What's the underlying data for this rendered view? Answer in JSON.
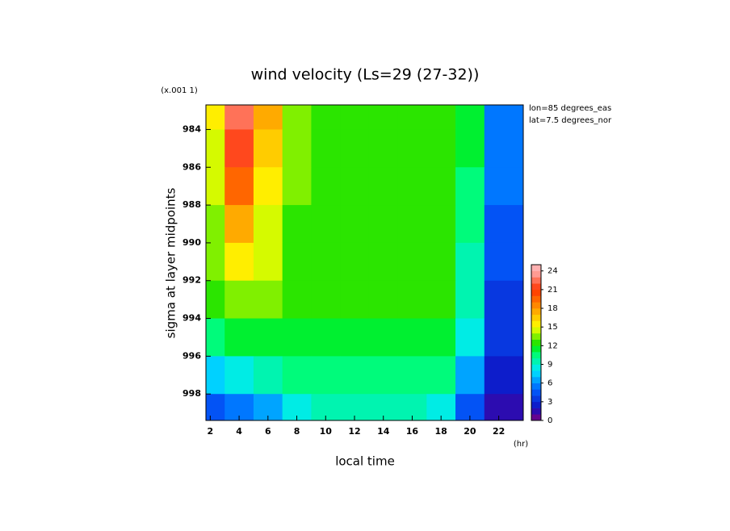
{
  "chart_data": {
    "type": "contour",
    "title": "wind velocity (Ls=29 (27-32))",
    "x_label": "local time",
    "y_label": "sigma at layer midpoints",
    "x_unit": "(hr)",
    "y_multiplier": "(x.001 1)",
    "annotations": [
      "lon=85 degrees_eas",
      "lat=7.5 degrees_nor"
    ],
    "x": [
      2,
      4,
      6,
      8,
      10,
      12,
      14,
      16,
      18,
      20,
      22
    ],
    "y": [
      983,
      985,
      987,
      989,
      991,
      993,
      995,
      997,
      999
    ],
    "z": [
      [
        15,
        22,
        17,
        13,
        12,
        12,
        12,
        12,
        12,
        11,
        5
      ],
      [
        14,
        21,
        16,
        13,
        12,
        12,
        12,
        12,
        12,
        11,
        5
      ],
      [
        14,
        19,
        15,
        13,
        12,
        12,
        12,
        12,
        12,
        10,
        5
      ],
      [
        13,
        17,
        14,
        12,
        12,
        12,
        12,
        12,
        12,
        10,
        4
      ],
      [
        13,
        15,
        14,
        12,
        12,
        12,
        12,
        12,
        12,
        9,
        4
      ],
      [
        12,
        13,
        13,
        12,
        12,
        12,
        12,
        12,
        12,
        9,
        3
      ],
      [
        10,
        11,
        11,
        11,
        11,
        11,
        11,
        11,
        11,
        8,
        3
      ],
      [
        7,
        8,
        9,
        10,
        10,
        10,
        10,
        10,
        10,
        6,
        2
      ],
      [
        4,
        5,
        6,
        8,
        9,
        9,
        9,
        9,
        8,
        4,
        1
      ]
    ],
    "xlim": [
      1.7,
      23.7
    ],
    "xticks": [
      2,
      4,
      6,
      8,
      10,
      12,
      14,
      16,
      18,
      20,
      22
    ],
    "ylim": [
      999.4,
      982.7
    ],
    "yticks": [
      984,
      986,
      988,
      990,
      992,
      994,
      996,
      998
    ],
    "colorbar_lim": [
      0,
      25
    ],
    "colorbar_ticks": [
      0,
      3,
      6,
      9,
      12,
      15,
      18,
      21,
      24
    ],
    "colorscale": [
      [
        0,
        "#800080"
      ],
      [
        2,
        "#1010c0"
      ],
      [
        5,
        "#0060ff"
      ],
      [
        8,
        "#00e8ff"
      ],
      [
        11,
        "#00ff60"
      ],
      [
        12,
        "#00e000"
      ],
      [
        15,
        "#ffff00"
      ],
      [
        18,
        "#ff9900"
      ],
      [
        21,
        "#ff3300"
      ],
      [
        24,
        "#ffb0b0"
      ]
    ]
  }
}
